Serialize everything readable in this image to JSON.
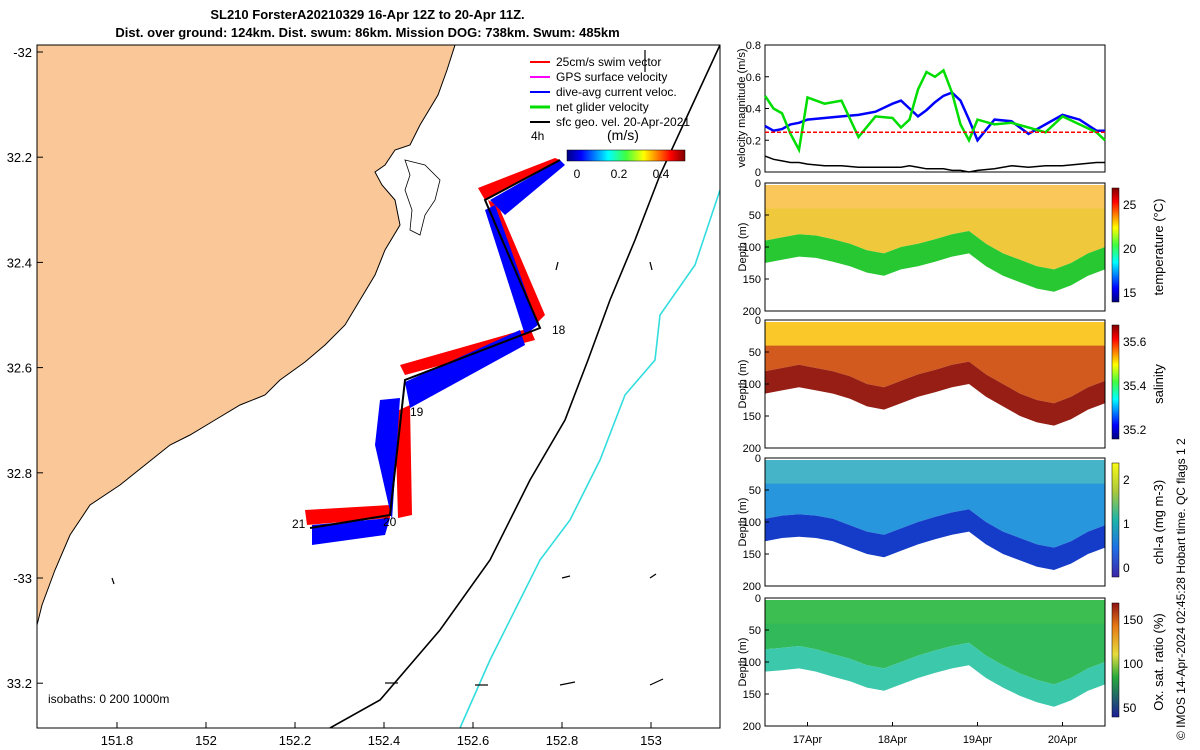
{
  "header": {
    "title_line1": "SL210 ForsterA20210329 16-Apr 12Z to 20-Apr 11Z.",
    "title_line2": "Dist. over ground: 124km. Dist. swum: 86km. Mission DOG: 738km. Swum: 485km"
  },
  "map": {
    "lon_ticks": [
      "151.8",
      "152",
      "152.2",
      "152.4",
      "152.6",
      "152.8",
      "153"
    ],
    "lat_ticks": [
      "-32",
      "32.2",
      "32.4",
      "32.6",
      "32.8",
      "-33",
      "33.2"
    ],
    "legend": [
      {
        "label": "25cm/s swim vector",
        "color": "#ff0000"
      },
      {
        "label": "GPS surface velocity",
        "color": "#ff00ff"
      },
      {
        "label": "dive-avg current veloc.",
        "color": "#0000ff"
      },
      {
        "label": "net glider velocity",
        "color": "#00dd00"
      },
      {
        "label": "sfc geo. vel. 20-Apr-2021",
        "color": "#000000"
      }
    ],
    "colorbar_title": "(m/s)",
    "colorbar_ticks": [
      "0",
      "0.2",
      "0.4"
    ],
    "time_interval_label": "4h",
    "isobaths_label": "isobaths: 0   200  1000m",
    "day_markers": [
      "18",
      "19",
      "20",
      "21"
    ],
    "land_color": "#fac898",
    "isobath_200_color": "#000000",
    "isobath_1000_color": "#33dddd"
  },
  "chart_data": [
    {
      "type": "line",
      "ylabel": "velocity magnitude (m/s)",
      "ylim": [
        0,
        0.8
      ],
      "yticks": [
        "0",
        "0.2",
        "0.4",
        "0.6",
        "0.8"
      ],
      "x": [
        16.5,
        16.6,
        16.7,
        16.8,
        16.9,
        17.0,
        17.2,
        17.4,
        17.6,
        17.8,
        18.0,
        18.1,
        18.2,
        18.3,
        18.4,
        18.5,
        18.6,
        18.7,
        18.8,
        18.9,
        19.0,
        19.2,
        19.4,
        19.6,
        19.8,
        20.0,
        20.2,
        20.4,
        20.5
      ],
      "series": [
        {
          "name": "dive-avg current veloc.",
          "color": "#0000ff",
          "values": [
            0.29,
            0.26,
            0.27,
            0.3,
            0.31,
            0.33,
            0.34,
            0.35,
            0.36,
            0.38,
            0.43,
            0.45,
            0.4,
            0.35,
            0.39,
            0.44,
            0.48,
            0.5,
            0.45,
            0.33,
            0.2,
            0.33,
            0.32,
            0.24,
            0.3,
            0.36,
            0.33,
            0.26,
            0.26
          ]
        },
        {
          "name": "net glider velocity",
          "color": "#00dd00",
          "values": [
            0.48,
            0.4,
            0.37,
            0.24,
            0.14,
            0.47,
            0.43,
            0.45,
            0.22,
            0.35,
            0.34,
            0.28,
            0.33,
            0.52,
            0.63,
            0.6,
            0.64,
            0.5,
            0.3,
            0.2,
            0.33,
            0.3,
            0.31,
            0.28,
            0.25,
            0.35,
            0.3,
            0.25,
            0.2
          ]
        },
        {
          "name": "25cm/s swim vector",
          "color": "#ff0000",
          "values": [
            0.25,
            0.25,
            0.25,
            0.25,
            0.25,
            0.25,
            0.25,
            0.25,
            0.25,
            0.25,
            0.25,
            0.25,
            0.25,
            0.25,
            0.25,
            0.25,
            0.25,
            0.25,
            0.25,
            0.25,
            0.25,
            0.25,
            0.25,
            0.25,
            0.25,
            0.25,
            0.25,
            0.25,
            0.25
          ]
        },
        {
          "name": "sfc geo. vel. 20-Apr-2021",
          "color": "#000000",
          "values": [
            0.1,
            0.08,
            0.07,
            0.06,
            0.06,
            0.05,
            0.04,
            0.04,
            0.03,
            0.03,
            0.03,
            0.03,
            0.04,
            0.03,
            0.02,
            0.02,
            0.02,
            0.01,
            0.01,
            0.0,
            0.01,
            0.02,
            0.04,
            0.03,
            0.04,
            0.04,
            0.05,
            0.06,
            0.06
          ]
        }
      ]
    },
    {
      "type": "heatmap",
      "ylabel": "Depth (m)",
      "ylim": [
        200,
        0
      ],
      "yticks": [
        "0",
        "50",
        "100",
        "150",
        "200"
      ],
      "colorbar_label": "temperature (°C)",
      "colorbar_ticks": [
        "15",
        "20",
        "25"
      ],
      "mixed_layer_depth_m": [
        90,
        85,
        80,
        82,
        88,
        95,
        105,
        110,
        100,
        95,
        88,
        80,
        75,
        95,
        110,
        120,
        130,
        135,
        125,
        110,
        100
      ]
    },
    {
      "type": "heatmap",
      "ylabel": "Depth (m)",
      "ylim": [
        200,
        0
      ],
      "yticks": [
        "0",
        "50",
        "100",
        "150",
        "200"
      ],
      "colorbar_label": "salinity",
      "colorbar_ticks": [
        "35.2",
        "35.4",
        "35.6"
      ],
      "mixed_layer_depth_m": [
        80,
        75,
        70,
        75,
        80,
        88,
        100,
        105,
        95,
        85,
        78,
        70,
        65,
        85,
        100,
        115,
        125,
        130,
        120,
        105,
        95
      ]
    },
    {
      "type": "heatmap",
      "ylabel": "Depth (m)",
      "ylim": [
        200,
        0
      ],
      "yticks": [
        "0",
        "50",
        "100",
        "150",
        "200"
      ],
      "colorbar_label": "chl-a (mg m-3)",
      "colorbar_ticks": [
        "0",
        "1",
        "2"
      ],
      "mixed_layer_depth_m": [
        95,
        90,
        88,
        90,
        95,
        105,
        115,
        120,
        110,
        100,
        92,
        85,
        80,
        100,
        115,
        125,
        135,
        140,
        130,
        115,
        105
      ]
    },
    {
      "type": "heatmap",
      "ylabel": "Depth (m)",
      "ylim": [
        200,
        0
      ],
      "yticks": [
        "0",
        "50",
        "100",
        "150",
        "200"
      ],
      "colorbar_label": "Ox. sat. ratio (%)",
      "colorbar_ticks": [
        "50",
        "100",
        "150"
      ],
      "xticks": [
        "17Apr",
        "18Apr",
        "19Apr",
        "20Apr"
      ],
      "mixed_layer_depth_m": [
        80,
        78,
        75,
        80,
        88,
        95,
        105,
        110,
        100,
        90,
        82,
        75,
        70,
        90,
        105,
        118,
        128,
        135,
        125,
        110,
        100
      ]
    }
  ],
  "credit": "© IMOS 14-Apr-2024 02:45:28 Hobart time. QC flags 1  2"
}
